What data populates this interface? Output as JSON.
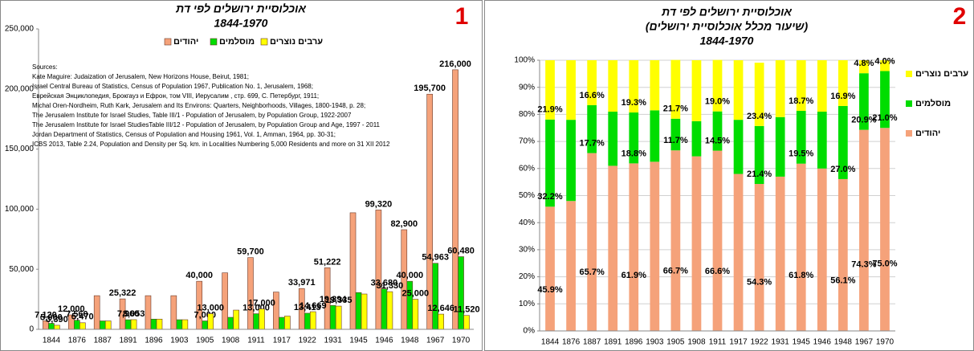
{
  "chart_data": [
    {
      "type": "bar",
      "badge": "1",
      "title": "אוכלוסיית ירושלים לפי דת",
      "subtitle": [
        "1844-1970"
      ],
      "categories": [
        "1844",
        "1876",
        "1887",
        "1891",
        "1896",
        "1903",
        "1905",
        "1908",
        "1911",
        "1917",
        "1922",
        "1931",
        "1945",
        "1946",
        "1948",
        "1967",
        "1970"
      ],
      "series": [
        {
          "name": "יהודים",
          "color": "#f5a27a",
          "values": [
            7120,
            12000,
            28000,
            25322,
            28000,
            28000,
            40000,
            47000,
            59700,
            31000,
            33971,
            51222,
            97000,
            99320,
            82900,
            195700,
            216000
          ],
          "value_labels": [
            "7,120",
            "12,000",
            null,
            "25,322",
            null,
            null,
            "40,000",
            null,
            "59,700",
            null,
            "33,971",
            "51,222",
            null,
            "99,320",
            "82,900",
            "195,700",
            "216,000"
          ]
        },
        {
          "name": "מוסלמים",
          "color": "#00dd00",
          "values": [
            5000,
            7560,
            7000,
            7960,
            8500,
            8000,
            7000,
            10000,
            13000,
            10000,
            13413,
            19894,
            30600,
            33680,
            40000,
            54963,
            60480
          ],
          "value_labels": [
            "5,000",
            "7,560",
            null,
            "7,960",
            null,
            null,
            "7,000",
            null,
            "13,000",
            null,
            "13,413",
            "19,894",
            null,
            "33,680",
            "40,000",
            "54,963",
            "60,480"
          ]
        },
        {
          "name": "ערבים נוצרים",
          "color": "#ffff00",
          "values": [
            3390,
            5470,
            7000,
            8053,
            8500,
            8000,
            13000,
            16000,
            17000,
            11000,
            14669,
            19335,
            29400,
            31330,
            25000,
            12646,
            11520
          ],
          "value_labels": [
            "3,390",
            "5,470",
            null,
            "8,053",
            null,
            null,
            "13,000",
            null,
            "17,000",
            null,
            "14,669",
            "19,335",
            null,
            "31,330",
            "25,000",
            "12,646",
            "11,520"
          ]
        }
      ],
      "ylim": [
        0,
        250000
      ],
      "yticks": [
        {
          "value": 0,
          "label": "0"
        },
        {
          "value": 50000,
          "label": "50,000"
        },
        {
          "value": 100000,
          "label": "100,000"
        },
        {
          "value": 150000,
          "label": "150,000"
        },
        {
          "value": 200000,
          "label": "200,000"
        },
        {
          "value": 250000,
          "label": "250,000"
        }
      ],
      "grid": false,
      "legend": "top",
      "sources": [
        "Sources:",
        "Kate Maguire: Judaization of Jerusalem, New Horizons House, Beirut, 1981;",
        "Israel  Central  Bureau of  Statistics, Census of Population 1967, Publication No. 1, Jerusalem, 1968;",
        "Еврейская Энциклопедия, Брокгауз и Ефрон, том VIII, Иерусалим , стр. 699,  С. Петербург, 1911;",
        "Michal Oren-Nordheim, Ruth Kark,  Jerusalem and Its Environs: Quarters, Neighborhoods, Villages, 1800-1948,  p. 28;",
        "The Jerusalem Institute for Israel Studies, Table III/1 - Population of Jerusalem, by Population Group, 1922-2007",
        "The Jerusalem Institute for Israel StudiesTable III/12 - Population of Jerusalem, by Population Group and Age, 1997 - 2011",
        "Jordan Department of Statistics, Census of Population and Housing 1961, Vol. 1, Amman, 1964, pp. 30-31;",
        "ICBS 2013,   Table 2.24, Population and Density per Sq. km. in Localities Numbering 5,000 Residents and more on 31 XII 2012"
      ]
    },
    {
      "type": "stacked_bar",
      "badge": "2",
      "title": "אוכלוסיית ירושלים לפי דת",
      "subtitle": [
        "(שיעור מכלל אוכלוסיית ירושלים)",
        "1844-1970"
      ],
      "categories": [
        "1844",
        "1876",
        "1887",
        "1891",
        "1896",
        "1903",
        "1905",
        "1908",
        "1911",
        "1917",
        "1922",
        "1931",
        "1945",
        "1946",
        "1948",
        "1967",
        "1970"
      ],
      "series": [
        {
          "name": "יהודים",
          "color": "#f5a27a",
          "values": [
            45.9,
            48,
            65.7,
            61,
            61.9,
            62.5,
            66.7,
            64.5,
            66.6,
            58,
            54.3,
            57,
            61.8,
            60,
            56.1,
            74.3,
            75
          ],
          "value_labels": [
            "45.9%",
            null,
            "65.7%",
            null,
            "61.9%",
            null,
            "66.7%",
            null,
            "66.6%",
            null,
            "54.3%",
            null,
            "61.8%",
            null,
            "56.1%",
            "74.3%",
            "75.0%"
          ]
        },
        {
          "name": "מוסלמים",
          "color": "#00dd00",
          "values": [
            32.2,
            30,
            17.7,
            20,
            18.8,
            19,
            11.7,
            13,
            14.5,
            20,
            21.4,
            22,
            19.5,
            21,
            27,
            20.9,
            21
          ],
          "value_labels": [
            "32.2%",
            null,
            "17.7%",
            null,
            "18.8%",
            null,
            "11.7%",
            null,
            "14.5%",
            null,
            "21.4%",
            null,
            "19.5%",
            null,
            "27.0%",
            "20.9%",
            "21.0%"
          ]
        },
        {
          "name": "ערבים נוצרים",
          "color": "#ffff00",
          "values": [
            21.9,
            22,
            16.6,
            19,
            19.3,
            18.5,
            21.7,
            22.5,
            19,
            22,
            23.4,
            21,
            18.7,
            19,
            16.9,
            4.8,
            4
          ],
          "value_labels": [
            "21.9%",
            null,
            "16.6%",
            null,
            "19.3%",
            null,
            "21.7%",
            null,
            "19.0%",
            null,
            "23.4%",
            null,
            "18.7%",
            null,
            "16.9%",
            "4.8%",
            "4.0%"
          ]
        }
      ],
      "ylim": [
        0,
        100
      ],
      "yticks": [
        {
          "value": 0,
          "label": "0%"
        },
        {
          "value": 10,
          "label": "10%"
        },
        {
          "value": 20,
          "label": "20%"
        },
        {
          "value": 30,
          "label": "30%"
        },
        {
          "value": 40,
          "label": "40%"
        },
        {
          "value": 50,
          "label": "50%"
        },
        {
          "value": 60,
          "label": "60%"
        },
        {
          "value": 70,
          "label": "70%"
        },
        {
          "value": 80,
          "label": "80%"
        },
        {
          "value": 90,
          "label": "90%"
        },
        {
          "value": 100,
          "label": "100%"
        }
      ],
      "grid": true,
      "legend": "right"
    }
  ]
}
